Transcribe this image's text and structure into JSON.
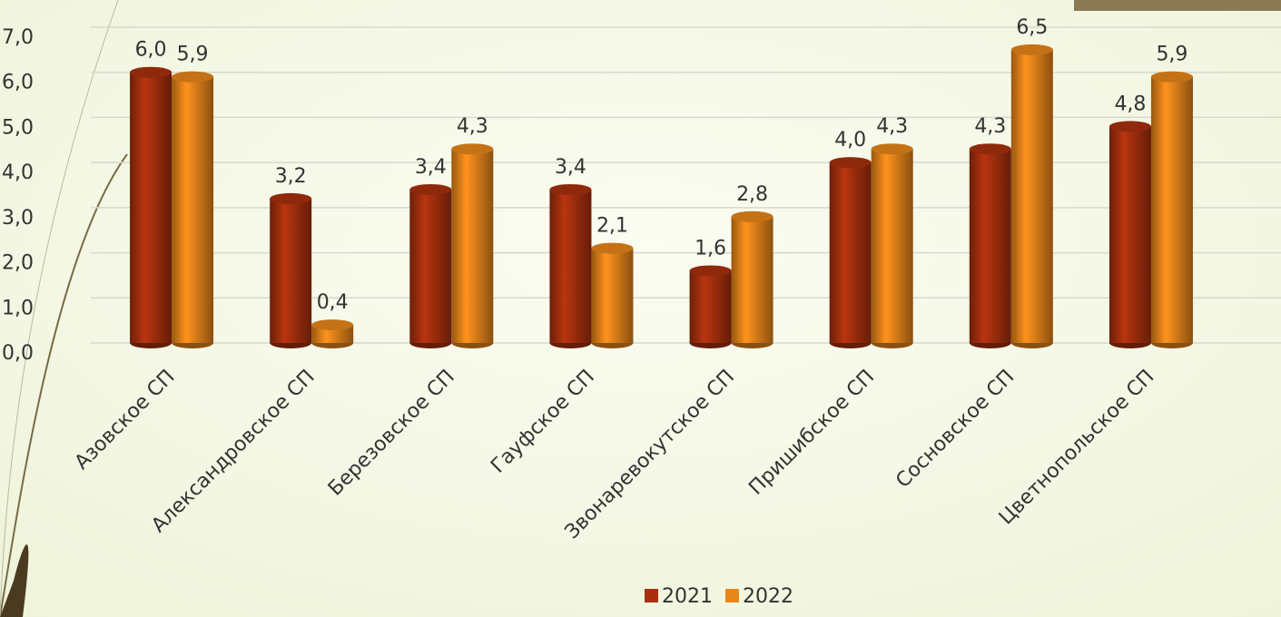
{
  "chart_data": {
    "type": "bar",
    "categories": [
      "Азовское СП",
      "Александровское СП",
      "Березовское СП",
      "Гауфское СП",
      "Звонаревокутское СП",
      "Пришибское СП",
      "Сосновское СП",
      "Цветнопольское СП"
    ],
    "series": [
      {
        "name": "2021",
        "color": "#a8300e",
        "values": [
          6.0,
          3.2,
          3.4,
          3.4,
          1.6,
          4.0,
          4.3,
          4.8
        ],
        "value_labels": [
          "6,0",
          "3,2",
          "3,4",
          "3,4",
          "1,6",
          "4,0",
          "4,3",
          "4,8"
        ]
      },
      {
        "name": "2022",
        "color": "#e8861a",
        "values": [
          5.9,
          0.4,
          4.3,
          2.1,
          2.8,
          4.3,
          6.5,
          5.9
        ],
        "value_labels": [
          "5,9",
          "0,4",
          "4,3",
          "2,1",
          "2,8",
          "4,3",
          "6,5",
          "5,9"
        ]
      }
    ],
    "ylim": [
      0,
      7
    ],
    "yticks": [
      {
        "value": 0,
        "label": "0,0"
      },
      {
        "value": 1,
        "label": "1,0"
      },
      {
        "value": 2,
        "label": "2,0"
      },
      {
        "value": 3,
        "label": "3,0"
      },
      {
        "value": 4,
        "label": "4,0"
      },
      {
        "value": 5,
        "label": "5,0"
      },
      {
        "value": 6,
        "label": "6,0"
      },
      {
        "value": 7,
        "label": "7,0"
      }
    ],
    "grid": true,
    "legend": "bottom"
  }
}
